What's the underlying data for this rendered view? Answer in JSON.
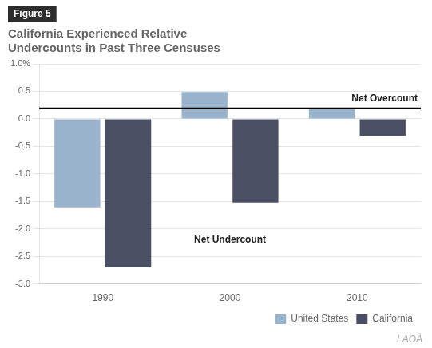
{
  "chart_data": {
    "type": "bar",
    "figure_label": "Figure 5",
    "title": [
      "California Experienced Relative",
      "Undercounts in Past Three Censuses"
    ],
    "categories": [
      "1990",
      "2000",
      "2010"
    ],
    "series": [
      {
        "name": "United States",
        "color": "#9ab3cc",
        "values": [
          -1.61,
          0.49,
          0.19
        ]
      },
      {
        "name": "California",
        "color": "#4a4f63",
        "values": [
          -2.7,
          -1.52,
          -0.31
        ]
      }
    ],
    "ylim": [
      -3.0,
      1.0
    ],
    "yticks": [
      {
        "value": 1.0,
        "label": "1.0%"
      },
      0.5,
      {
        "value": 0.0,
        "label": "0.0"
      },
      -0.5,
      {
        "value": -1.0,
        "label": "-1.0"
      },
      -1.5,
      {
        "value": -2.0,
        "label": "-2.0"
      },
      -2.5,
      {
        "value": -3.0,
        "label": "-3.0"
      }
    ],
    "reference_line": 0.19,
    "annotations": [
      "Net Overcount",
      "Net Undercount"
    ],
    "watermark": "LAOÀ",
    "grid": true,
    "legend": "bottom"
  }
}
